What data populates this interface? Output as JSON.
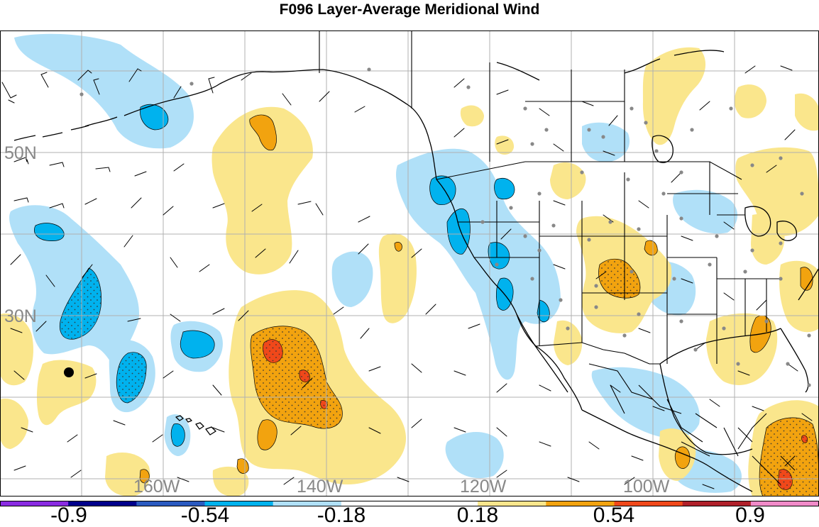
{
  "title": "F096 Layer-Average Meridional Wind",
  "latitude_labels": [
    "50N",
    "30N"
  ],
  "longitude_labels": [
    "160W",
    "140W",
    "120W",
    "100W"
  ],
  "colorbar": {
    "tick_labels": [
      "-0.9",
      "-0.54",
      "-0.18",
      "0.18",
      "0.54",
      "0.9"
    ],
    "colors": [
      "#8a2be2",
      "#00008b",
      "#2a5ac0",
      "#00b2ee",
      "#b0e0f8",
      "#ffffff",
      "#ffffff",
      "#fae68c",
      "#f2a30f",
      "#f0481a",
      "#b0202a",
      "#f08ac8"
    ]
  },
  "map": {
    "background": "#ffffff",
    "grid_color": "#b0b0b0",
    "positive_colors": [
      "#fae68c",
      "#f2a30f",
      "#f0481a"
    ],
    "negative_colors": [
      "#b0e0f8",
      "#00b2ee"
    ],
    "station_marker_color": "#888888",
    "highlight_marker_color": "#000000"
  }
}
